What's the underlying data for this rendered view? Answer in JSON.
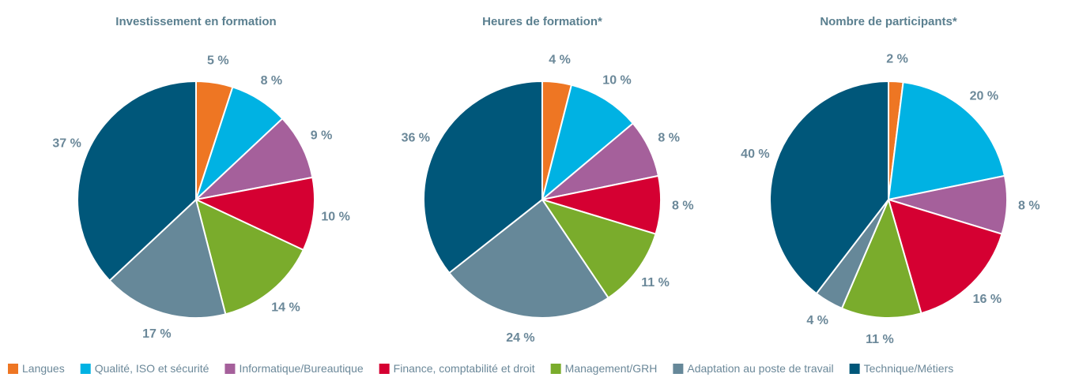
{
  "chart_data": [
    {
      "type": "pie",
      "title": "Investissement en formation",
      "categories": [
        "Langues",
        "Qualité, ISO et sécurité",
        "Informatique/Bureautique",
        "Finance, comptabilité et droit",
        "Management/GRH",
        "Adaptation au poste de travail",
        "Technique/Métiers"
      ],
      "colors": [
        "#ee7623",
        "#00b2e3",
        "#a5609b",
        "#d50032",
        "#7aac2c",
        "#668899",
        "#00577a"
      ],
      "values": [
        5,
        8,
        9,
        10,
        14,
        17,
        37
      ],
      "value_labels": [
        "5 %",
        "8 %",
        "9 %",
        "10 %",
        "14 %",
        "17 %",
        "37 %"
      ]
    },
    {
      "type": "pie",
      "title": "Heures de formation*",
      "categories": [
        "Langues",
        "Qualité, ISO et sécurité",
        "Informatique/Bureautique",
        "Finance, comptabilité et droit",
        "Management/GRH",
        "Adaptation au poste de travail",
        "Technique/Métiers"
      ],
      "colors": [
        "#ee7623",
        "#00b2e3",
        "#a5609b",
        "#d50032",
        "#7aac2c",
        "#668899",
        "#00577a"
      ],
      "values": [
        4,
        10,
        8,
        8,
        11,
        24,
        36
      ],
      "value_labels": [
        "4 %",
        "10 %",
        "8 %",
        "8 %",
        "11 %",
        "24 %",
        "36 %"
      ]
    },
    {
      "type": "pie",
      "title": "Nombre de participants*",
      "categories": [
        "Langues",
        "Qualité, ISO et sécurité",
        "Informatique/Bureautique",
        "Finance, comptabilité et droit",
        "Management/GRH",
        "Adaptation au poste de travail",
        "Technique/Métiers"
      ],
      "colors": [
        "#ee7623",
        "#00b2e3",
        "#a5609b",
        "#d50032",
        "#7aac2c",
        "#668899",
        "#00577a"
      ],
      "values": [
        2,
        20,
        8,
        16,
        11,
        4,
        40
      ],
      "value_labels": [
        "2 %",
        "20 %",
        "8 %",
        "16 %",
        "11 %",
        "4 %",
        "40 %"
      ]
    }
  ]
}
